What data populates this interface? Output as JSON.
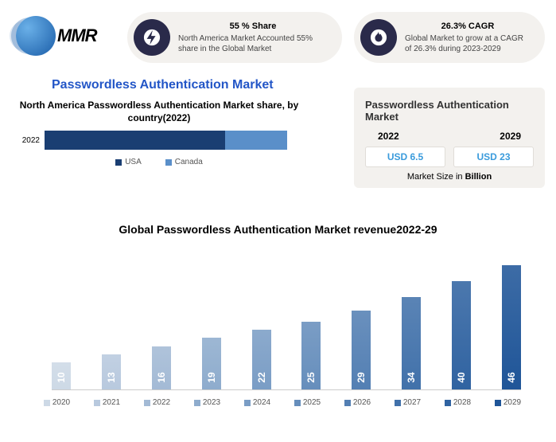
{
  "logo": {
    "text": "MMR"
  },
  "pill1": {
    "headline": "55 % Share",
    "desc": "North America Market Accounted 55% share in the Global Market"
  },
  "pill2": {
    "headline": "26.3% CAGR",
    "desc": "Global Market to grow at a CAGR of 26.3% during 2023-2029"
  },
  "main_title": "Passwordless Authentication Market",
  "hbar": {
    "title": "North America Passwordless Authentication Market share, by country(2022)",
    "row_label": "2022",
    "usa_pct": 70,
    "canada_pct": 24,
    "legend_usa": "USA",
    "legend_canada": "Canada",
    "color_usa": "#1a3e72",
    "color_canada": "#5a8fc9"
  },
  "card": {
    "title": "Passwordless Authentication Market",
    "year1": "2022",
    "year2": "2029",
    "val1": "USD 6.5",
    "val2": "USD 23",
    "foot_a": "Market Size in ",
    "foot_b": "Billion"
  },
  "revenue": {
    "title": "Global Passwordless Authentication Market revenue2022-29",
    "max": 50,
    "bars": [
      {
        "year": "2020",
        "val": 10,
        "color": "#cdd9e6"
      },
      {
        "year": "2021",
        "val": 13,
        "color": "#b8c9de"
      },
      {
        "year": "2022",
        "val": 16,
        "color": "#a3bad5"
      },
      {
        "year": "2023",
        "val": 19,
        "color": "#8eaccd"
      },
      {
        "year": "2024",
        "val": 22,
        "color": "#7a9dc5"
      },
      {
        "year": "2025",
        "val": 25,
        "color": "#668ebc"
      },
      {
        "year": "2026",
        "val": 29,
        "color": "#537fb3"
      },
      {
        "year": "2027",
        "val": 34,
        "color": "#4171aa"
      },
      {
        "year": "2028",
        "val": 40,
        "color": "#3063a1"
      },
      {
        "year": "2029",
        "val": 46,
        "color": "#1f5598"
      }
    ]
  }
}
